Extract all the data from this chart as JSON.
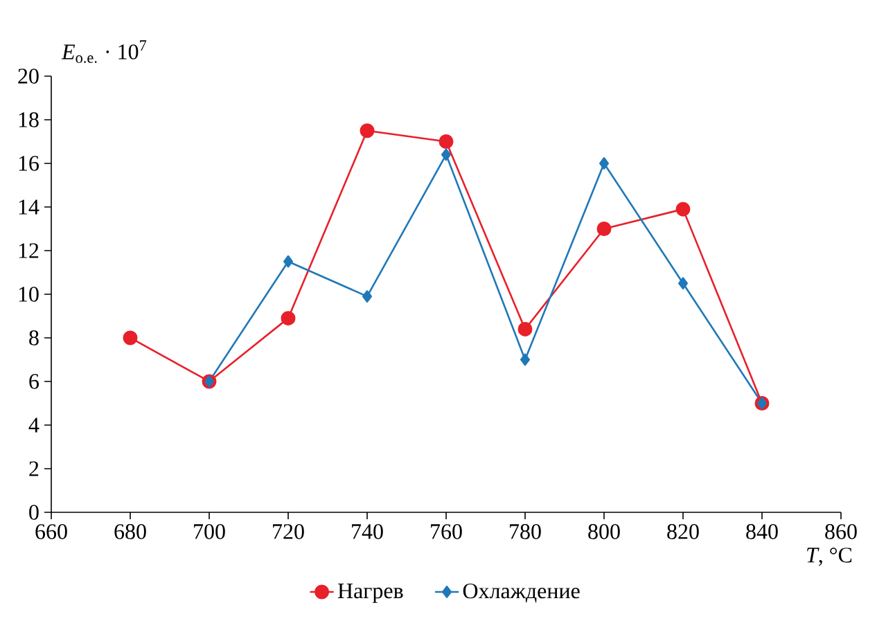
{
  "chart_data": {
    "type": "line",
    "ylabel": "*E*$_{о.е.}$ · 10$^{7}$",
    "xlabel": "*T*, °C",
    "xlim": [
      660,
      860
    ],
    "xticks": [
      660,
      680,
      700,
      720,
      740,
      760,
      780,
      800,
      820,
      840,
      860
    ],
    "ylim": [
      0,
      20
    ],
    "yticks": [
      0,
      2,
      4,
      6,
      8,
      10,
      12,
      14,
      16,
      18,
      20
    ],
    "grid": false,
    "legend": "bottom",
    "line_style": "solid",
    "series": [
      {
        "name": "Нагрев",
        "color": "#e8202a",
        "marker": "circle",
        "x": [
          680,
          700,
          720,
          740,
          760,
          780,
          800,
          820,
          840
        ],
        "values": [
          8,
          6,
          8.9,
          17.5,
          17,
          8.4,
          13,
          13.9,
          5
        ]
      },
      {
        "name": "Охлаждение",
        "color": "#1f78b8",
        "marker": "diamond",
        "x": [
          700,
          720,
          740,
          760,
          780,
          800,
          820,
          840
        ],
        "values": [
          6,
          11.5,
          9.9,
          16.4,
          7,
          16,
          10.5,
          5
        ]
      }
    ]
  }
}
